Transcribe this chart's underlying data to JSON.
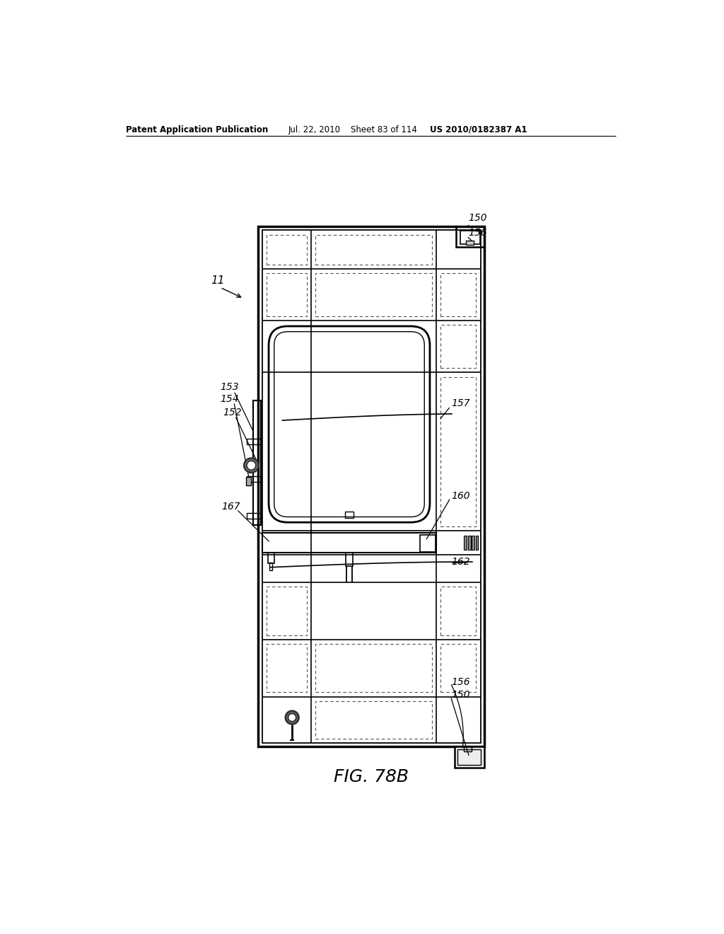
{
  "bg_color": "#ffffff",
  "line_color": "#000000",
  "header_text": "Patent Application Publication",
  "header_date": "Jul. 22, 2010",
  "header_sheet": "Sheet 83 of 114",
  "header_patent": "US 2010/0182387 A1",
  "figure_label": "FIG. 78B",
  "label_11": "11",
  "label_150a": "150",
  "label_156a": "156",
  "label_153": "153",
  "label_154": "154",
  "label_152": "152",
  "label_157": "157",
  "label_160": "160",
  "label_167": "167",
  "label_162": "162",
  "label_156b": "156",
  "label_150b": "150"
}
